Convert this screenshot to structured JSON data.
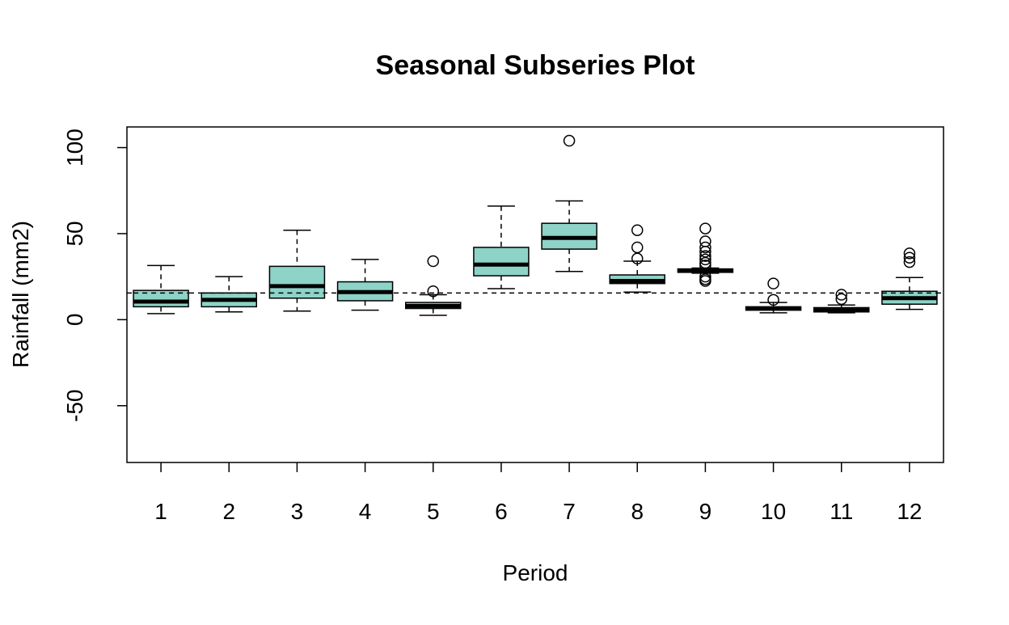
{
  "chart_data": {
    "type": "boxplot",
    "title": "Seasonal Subseries Plot",
    "xlabel": "Period",
    "ylabel": "Rainfall (mm2)",
    "ylim": [
      -83,
      112
    ],
    "yticks": [
      "-50",
      "0",
      "50",
      "100"
    ],
    "ytick_values": [
      -50,
      0,
      50,
      100
    ],
    "categories": [
      "1",
      "2",
      "3",
      "4",
      "5",
      "6",
      "7",
      "8",
      "9",
      "10",
      "11",
      "12"
    ],
    "reference_line": 15.5,
    "box_color": "#8dd3c7",
    "boxes": [
      {
        "period": "1",
        "whisker_low": 3.5,
        "q1": 7.5,
        "median": 10.5,
        "q3": 17,
        "whisker_high": 31.5,
        "outliers": []
      },
      {
        "period": "2",
        "whisker_low": 4.5,
        "q1": 7.5,
        "median": 11.5,
        "q3": 15.5,
        "whisker_high": 25,
        "outliers": []
      },
      {
        "period": "3",
        "whisker_low": 5,
        "q1": 12.5,
        "median": 19.5,
        "q3": 31,
        "whisker_high": 52,
        "outliers": []
      },
      {
        "period": "4",
        "whisker_low": 5.5,
        "q1": 11,
        "median": 16,
        "q3": 22,
        "whisker_high": 35,
        "outliers": []
      },
      {
        "period": "5",
        "whisker_low": 2.5,
        "q1": 6.5,
        "median": 8,
        "q3": 10,
        "whisker_high": 14.5,
        "outliers": [
          16.5,
          34
        ]
      },
      {
        "period": "6",
        "whisker_low": 18,
        "q1": 25.5,
        "median": 32,
        "q3": 42,
        "whisker_high": 66,
        "outliers": []
      },
      {
        "period": "7",
        "whisker_low": 28,
        "q1": 41,
        "median": 47.5,
        "q3": 56,
        "whisker_high": 69,
        "outliers": [
          104
        ]
      },
      {
        "period": "8",
        "whisker_low": 16,
        "q1": 21,
        "median": 22.5,
        "q3": 26,
        "whisker_high": 34,
        "outliers": [
          35.5,
          42,
          52
        ]
      },
      {
        "period": "9",
        "whisker_low": 27,
        "q1": 27.5,
        "median": 28.5,
        "q3": 29.5,
        "whisker_high": 30,
        "outliers": [
          22.5,
          23.5,
          25,
          31.5,
          33,
          35,
          37,
          39.5,
          42,
          45.5,
          53
        ]
      },
      {
        "period": "10",
        "whisker_low": 4,
        "q1": 5.5,
        "median": 6.5,
        "q3": 7.5,
        "whisker_high": 10,
        "outliers": [
          11.5,
          21
        ]
      },
      {
        "period": "11",
        "whisker_low": 4,
        "q1": 4.5,
        "median": 5.5,
        "q3": 7,
        "whisker_high": 8.5,
        "outliers": [
          12,
          14.5
        ]
      },
      {
        "period": "12",
        "whisker_low": 6,
        "q1": 9,
        "median": 12.5,
        "q3": 16.5,
        "whisker_high": 24.5,
        "outliers": [
          33.5,
          36,
          38.5
        ]
      }
    ]
  }
}
